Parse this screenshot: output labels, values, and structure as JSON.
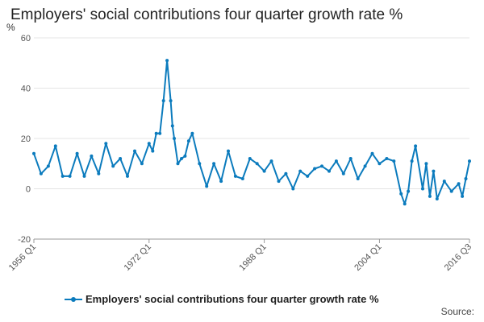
{
  "chart_data": {
    "type": "line",
    "title": "Employers' social contributions four quarter growth rate %",
    "ylabel": "%",
    "ylim": [
      -20,
      60
    ],
    "yticks": [
      -20,
      0,
      20,
      40,
      60
    ],
    "xlim": [
      "1956 Q1",
      "2016 Q3"
    ],
    "xticks": [
      "1956 Q1",
      "1972 Q1",
      "1988 Q1",
      "2004 Q1",
      "2016 Q3"
    ],
    "grid": true,
    "legend": "bottom",
    "source": "Source:",
    "series": [
      {
        "name": "Employers' social contributions four quarter growth rate %",
        "color": "#0b7bbd",
        "x": [
          "1956 Q1",
          "1957 Q1",
          "1958 Q1",
          "1959 Q1",
          "1960 Q1",
          "1961 Q1",
          "1962 Q1",
          "1963 Q1",
          "1964 Q1",
          "1965 Q1",
          "1966 Q1",
          "1967 Q1",
          "1968 Q1",
          "1969 Q1",
          "1970 Q1",
          "1971 Q1",
          "1972 Q1",
          "1972 Q3",
          "1973 Q1",
          "1973 Q3",
          "1974 Q1",
          "1974 Q3",
          "1975 Q1",
          "1975 Q2",
          "1975 Q3",
          "1976 Q1",
          "1976 Q3",
          "1977 Q1",
          "1977 Q3",
          "1978 Q1",
          "1979 Q1",
          "1980 Q1",
          "1981 Q1",
          "1982 Q1",
          "1983 Q1",
          "1984 Q1",
          "1985 Q1",
          "1986 Q1",
          "1987 Q1",
          "1988 Q1",
          "1989 Q1",
          "1990 Q1",
          "1991 Q1",
          "1992 Q1",
          "1993 Q1",
          "1994 Q1",
          "1995 Q1",
          "1996 Q1",
          "1997 Q1",
          "1998 Q1",
          "1999 Q1",
          "2000 Q1",
          "2001 Q1",
          "2002 Q1",
          "2003 Q1",
          "2004 Q1",
          "2005 Q1",
          "2006 Q1",
          "2007 Q1",
          "2007 Q3",
          "2008 Q1",
          "2008 Q3",
          "2009 Q1",
          "2010 Q1",
          "2010 Q3",
          "2011 Q1",
          "2011 Q3",
          "2012 Q1",
          "2013 Q1",
          "2014 Q1",
          "2015 Q1",
          "2015 Q3",
          "2016 Q1",
          "2016 Q3"
        ],
        "values": [
          14,
          6,
          9,
          17,
          5,
          5,
          14,
          5,
          13,
          6,
          18,
          9,
          12,
          5,
          15,
          10,
          18,
          15,
          22,
          22,
          35,
          51,
          35,
          25,
          20,
          10,
          12,
          13,
          19,
          22,
          10,
          1,
          10,
          3,
          15,
          5,
          4,
          12,
          10,
          7,
          11,
          3,
          6,
          0,
          7,
          5,
          8,
          9,
          7,
          11,
          6,
          12,
          4,
          9,
          14,
          10,
          12,
          11,
          -2,
          -6,
          -1,
          11,
          17,
          0,
          10,
          -3,
          7,
          -4,
          3,
          -1,
          2,
          -3,
          4,
          11
        ]
      }
    ]
  }
}
